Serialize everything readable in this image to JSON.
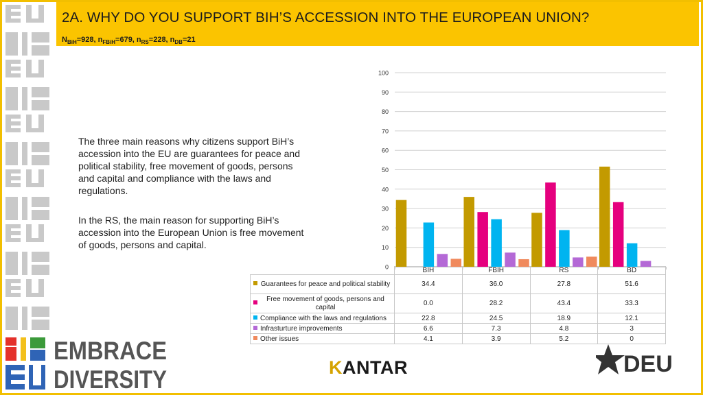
{
  "header": {
    "title": "2A. WHY DO YOU SUPPORT BIH’S ACCESSION INTO THE EUROPEAN UNION?",
    "n_parts": [
      {
        "label": "N",
        "sub": "BiH",
        "value": "=928, "
      },
      {
        "label": "n",
        "sub": "FBiH",
        "value": "=679, "
      },
      {
        "label": "n",
        "sub": "RS",
        "value": "=228, "
      },
      {
        "label": "n",
        "sub": "DB",
        "value": "=21"
      }
    ]
  },
  "body": {
    "paragraph1": "The three main reasons why citizens support BiH’s accession into the EU are guarantees for peace and political stability, free movement of goods, persons and capital and compliance with the laws and regulations.",
    "paragraph2": "In the RS, the main reason for supporting BiH’s accession into the European Union is free movement of goods, persons and capital."
  },
  "logos": {
    "embrace_line1": "EMBRACE",
    "embrace_line2": "DIVERSITY",
    "embrace_mark_top": "BiH",
    "embrace_mark_bottom": "EU",
    "kantar_first": "K",
    "kantar_rest": "ANTAR",
    "deu": "DEU"
  },
  "colors": {
    "header_bg": "#fbc400",
    "series": [
      "#c39a00",
      "#e5007e",
      "#00b4f0",
      "#b469d6",
      "#f08a5d"
    ]
  },
  "chart_data": {
    "type": "bar",
    "categories": [
      "BIH",
      "FBIH",
      "RS",
      "BD"
    ],
    "ylim": [
      0,
      100
    ],
    "yticks": [
      0,
      10,
      20,
      30,
      40,
      50,
      60,
      70,
      80,
      90,
      100
    ],
    "series": [
      {
        "name": "Guarantees for peace and political stability",
        "values": [
          34.4,
          36.0,
          27.8,
          51.6
        ],
        "display": [
          "34.4",
          "36.0",
          "27.8",
          "51.6"
        ]
      },
      {
        "name": "Free movement of goods, persons and capital",
        "values": [
          0.0,
          28.2,
          43.4,
          33.3
        ],
        "display": [
          "0.0",
          "28.2",
          "43.4",
          "33.3"
        ]
      },
      {
        "name": "Compliance with the laws and regulations",
        "values": [
          22.8,
          24.5,
          18.9,
          12.1
        ],
        "display": [
          "22.8",
          "24.5",
          "18.9",
          "12.1"
        ]
      },
      {
        "name": "Infrasturture improvements",
        "values": [
          6.6,
          7.3,
          4.8,
          3
        ],
        "display": [
          "6.6",
          "7.3",
          "4.8",
          "3"
        ]
      },
      {
        "name": "Other issues",
        "values": [
          4.1,
          3.9,
          5.2,
          0
        ],
        "display": [
          "4.1",
          "3.9",
          "5.2",
          "0"
        ]
      }
    ]
  }
}
